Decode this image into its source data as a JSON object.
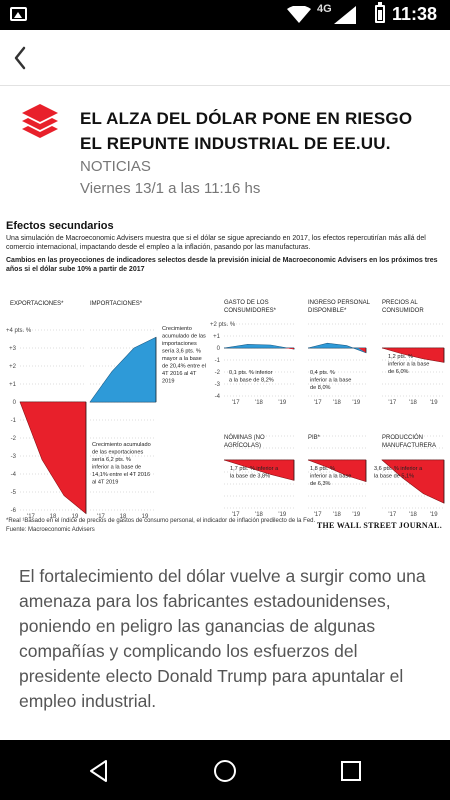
{
  "status_bar": {
    "network": "4G",
    "time": "11:38"
  },
  "article": {
    "headline": "EL ALZA DEL DÓLAR PONE EN RIESGO EL REPUNTE INDUSTRIAL DE EE.UU.",
    "section": "NOTICIAS",
    "date": "Viernes 13/1 a las 11:16 hs",
    "body": "El fortalecimiento del dólar vuelve a surgir como una amenaza para los fabricantes estadounidenses, poniendo en peligro las ganancias de algunas compañías y complicando los esfuerzos del presidente electo Donald Trump para apuntalar el empleo industrial."
  },
  "figure": {
    "title": "Efectos secundarios",
    "description": "Una simulación de Macroeconomic Advisers muestra que si el dólar se sigue apreciando en 2017, los efectos repercutirían más allá del comercio internacional, impactando desde el empleo a la inflación, pasando por las manufacturas.",
    "subtitle": "Cambios en las proyecciones de indicadores selectos desde la previsión inicial de Macroeconomic Advisers en los próximos tres años si el dólar sube 10% a partir de 2017",
    "note": "*Real  ¹Basado en el índice de precios de gastos de consumo personal, el indicador de inflación predilecto de la Fed.",
    "source": "Fuente: Macroeconomic Advisers",
    "credit": "THE WALL STREET JOURNAL.",
    "colors": {
      "negative": "#e8202b",
      "positive": "#2e9ad8"
    }
  },
  "chart_data": [
    {
      "type": "area",
      "title": "EXPORTACIONES*",
      "unit_label": "+4 pts. %",
      "y_ticks": [
        "+4",
        "+3",
        "+2",
        "+1",
        "0",
        "-1",
        "-2",
        "-3",
        "-4",
        "-5",
        "-6"
      ],
      "x_ticks": [
        "'17",
        "18",
        "19"
      ],
      "ylim": [
        -6,
        4
      ],
      "x": [
        0,
        1,
        2,
        3
      ],
      "values": [
        0,
        -3.2,
        -5.2,
        -6.2
      ],
      "annotation": "Crecimiento acumulado de las exportaciones sería 6,2 pts. % inferior a la base de 14,1% entre el 4T 2016 al 4T 2019"
    },
    {
      "type": "area",
      "title": "IMPORTACIONES*",
      "x_ticks": [
        "'17",
        "18",
        "19"
      ],
      "ylim": [
        -6,
        4
      ],
      "x": [
        0,
        1,
        2,
        3
      ],
      "values": [
        0,
        1.7,
        3.0,
        3.6
      ],
      "annotation": "Crecimiento acumulado de las importaciones sería 3,6 pts. % mayor a la base de 20,4% entre el 4T 2016 al 4T 2019"
    },
    {
      "type": "area",
      "title": "GASTO DE LOS CONSUMIDORES*",
      "unit_label": "+2 pts. %",
      "y_ticks": [
        "+2",
        "+1",
        "0",
        "-1",
        "-2",
        "-3",
        "-4"
      ],
      "x_ticks": [
        "'17",
        "'18",
        "'19"
      ],
      "ylim": [
        -4,
        2
      ],
      "x": [
        0,
        1,
        2,
        3
      ],
      "values": [
        0,
        0.3,
        0.25,
        -0.1
      ],
      "annotation": "0,1 pts. % inferior a la base de 8,2%"
    },
    {
      "type": "area",
      "title": "INGRESO PERSONAL DISPONIBLE*",
      "x_ticks": [
        "'17",
        "'18",
        "'19"
      ],
      "ylim": [
        -4,
        2
      ],
      "x": [
        0,
        1,
        2,
        3
      ],
      "values": [
        0,
        0.4,
        0.2,
        -0.4
      ],
      "annotation": "0,4 pts. % inferior a la base de 8,0%"
    },
    {
      "type": "area",
      "title": "PRECIOS AL CONSUMIDOR",
      "x_ticks": [
        "'17",
        "'18",
        "'19"
      ],
      "ylim": [
        -4,
        2
      ],
      "x": [
        0,
        1,
        2,
        3
      ],
      "values": [
        0,
        -0.5,
        -0.9,
        -1.2
      ],
      "annotation": "1,2 pts. % inferior a la base de 6,0%"
    },
    {
      "type": "area",
      "title": "NÓMINAS (NO AGRÍCOLAS)",
      "x_ticks": [
        "'17",
        "'18",
        "'19"
      ],
      "ylim": [
        -4,
        2
      ],
      "x": [
        0,
        1,
        2,
        3
      ],
      "values": [
        0,
        -0.6,
        -1.2,
        -1.7
      ],
      "annotation": "1,7 pts. % inferior a la base de 3,8%"
    },
    {
      "type": "area",
      "title": "PIB*",
      "x_ticks": [
        "'17",
        "'18",
        "'19"
      ],
      "ylim": [
        -4,
        2
      ],
      "x": [
        0,
        1,
        2,
        3
      ],
      "values": [
        0,
        -0.6,
        -1.3,
        -1.8
      ],
      "annotation": "1,8 pts. % inferior a la base de 6,3%"
    },
    {
      "type": "area",
      "title": "PRODUCCIÓN MANUFACTURERA",
      "x_ticks": [
        "'17",
        "'18",
        "'19"
      ],
      "ylim": [
        -4,
        2
      ],
      "x": [
        0,
        1,
        2,
        3
      ],
      "values": [
        0,
        -1.5,
        -2.8,
        -3.6
      ],
      "annotation": "3,6 pts. % inferior a la base de 5,1%"
    }
  ]
}
